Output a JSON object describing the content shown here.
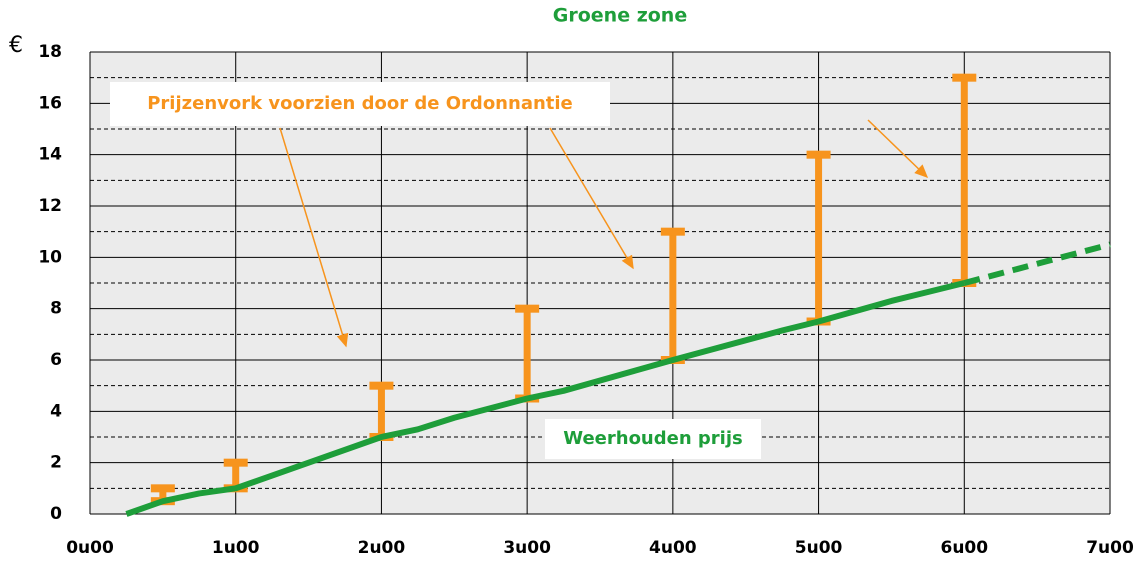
{
  "chart_data": {
    "type": "line",
    "title": "Groene zone",
    "y_label": "€",
    "xlim": [
      0,
      7
    ],
    "xticks": [
      {
        "value": 0,
        "label": "0u00"
      },
      {
        "value": 1,
        "label": "1u00"
      },
      {
        "value": 2,
        "label": "2u00"
      },
      {
        "value": 3,
        "label": "3u00"
      },
      {
        "value": 4,
        "label": "4u00"
      },
      {
        "value": 5,
        "label": "5u00"
      },
      {
        "value": 6,
        "label": "6u00"
      },
      {
        "value": 7,
        "label": "7u00"
      }
    ],
    "ylim": [
      0,
      18
    ],
    "yticks": [
      0,
      2,
      4,
      6,
      8,
      10,
      12,
      14,
      16,
      18
    ],
    "minor_yticks": [
      1,
      3,
      5,
      7,
      9,
      11,
      13,
      15,
      17
    ],
    "grid": true,
    "ranges": {
      "name": "Prijzenvork voorzien door de Ordonnantie",
      "color": "#f7941d",
      "x": [
        0.5,
        1,
        2,
        3,
        4,
        5,
        6
      ],
      "low": [
        0.5,
        1,
        3,
        4.5,
        6,
        7.5,
        9
      ],
      "high": [
        1,
        2,
        5,
        8,
        11,
        14,
        17
      ]
    },
    "series": [
      {
        "name": "Weerhouden prijs",
        "color": "#1e9e3a",
        "x": [
          0.25,
          0.5,
          0.75,
          1,
          1.5,
          2,
          2.25,
          2.5,
          3,
          3.25,
          3.75,
          4,
          4.75,
          5,
          5.5,
          5.75,
          6
        ],
        "values": [
          0,
          0.5,
          0.8,
          1,
          2,
          3,
          3.3,
          3.75,
          4.5,
          4.8,
          5.6,
          6,
          7.15,
          7.5,
          8.3,
          8.65,
          9
        ]
      },
      {
        "color": "#1e9e3a",
        "dashed": true,
        "x": [
          6,
          7
        ],
        "values": [
          9,
          10.5
        ]
      }
    ]
  }
}
